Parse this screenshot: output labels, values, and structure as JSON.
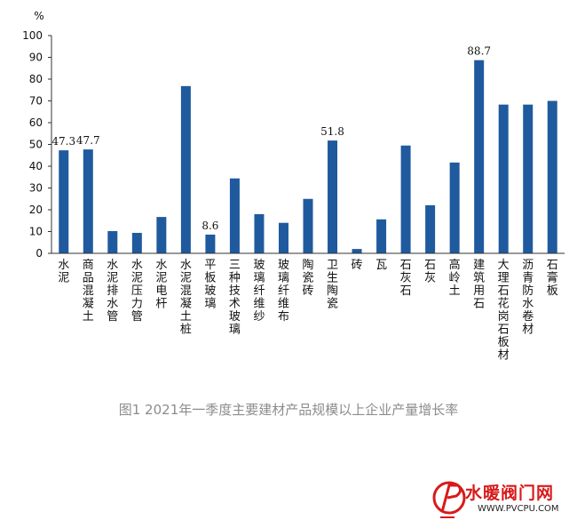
{
  "chart_data": {
    "type": "bar",
    "title": "",
    "ylabel": "%",
    "xlabel": "",
    "ylim": [
      0,
      100
    ],
    "yticks": [
      0,
      10,
      20,
      30,
      40,
      50,
      60,
      70,
      80,
      90,
      100
    ],
    "grid": false,
    "bar_color": "#1f5a9e",
    "categories": [
      "水泥",
      "商品混凝土",
      "水泥排水管",
      "水泥压力管",
      "水泥电杆",
      "水泥混凝土桩",
      "平板玻璃",
      "三种技术玻璃",
      "玻璃纤维纱",
      "玻璃纤维布",
      "陶瓷砖",
      "卫生陶瓷",
      "砖",
      "瓦",
      "石灰石",
      "石灰",
      "高岭土",
      "建筑用石",
      "大理石花岗石板材",
      "沥青防水卷材",
      "石膏板"
    ],
    "values": [
      47.3,
      47.7,
      10.2,
      9.4,
      16.7,
      76.8,
      8.6,
      34.4,
      18.0,
      14.0,
      25.0,
      51.8,
      2.0,
      15.6,
      49.5,
      22.1,
      41.7,
      88.7,
      68.3,
      68.3,
      70.0
    ],
    "data_labels": [
      {
        "index": 0,
        "text": "47.3"
      },
      {
        "index": 1,
        "text": "47.7"
      },
      {
        "index": 6,
        "text": "8.6"
      },
      {
        "index": 11,
        "text": "51.8"
      },
      {
        "index": 17,
        "text": "88.7"
      }
    ]
  },
  "caption": "图1  2021年一季度主要建材产品规模以上企业产量增长率",
  "watermark": {
    "text": "水暖阀门网",
    "url": "WWW.PVCPU.COM",
    "color": "#d81a1a"
  }
}
